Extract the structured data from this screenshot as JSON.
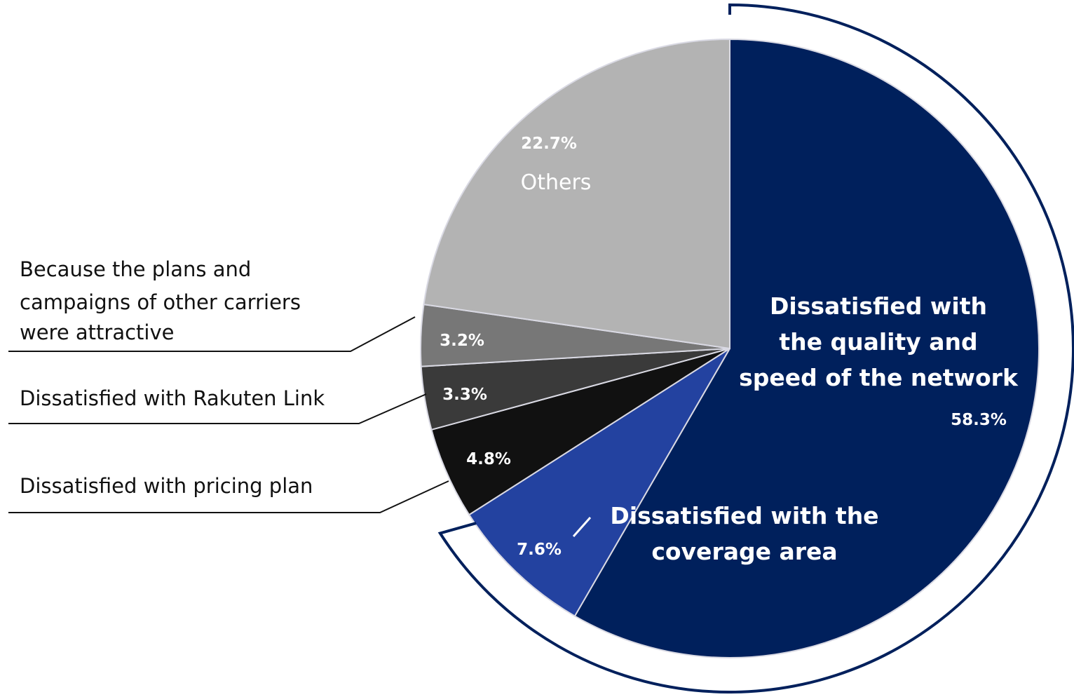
{
  "chart_data": {
    "type": "pie",
    "title": "",
    "start_angle_deg": 0,
    "direction": "clockwise",
    "slices": [
      {
        "name": "Dissatisfied with the quality and speed of the network",
        "name_lines": [
          "Dissatisfied with",
          "the quality and",
          "speed of the network"
        ],
        "value": 58.3,
        "label": "58.3%",
        "color": "#00205c"
      },
      {
        "name": "Dissatisfied with the coverage area",
        "name_lines": [
          "Dissatisfied with the",
          "coverage area"
        ],
        "value": 7.6,
        "label": "7.6%",
        "color": "#2342a0"
      },
      {
        "name": "Dissatisfied with pricing plan",
        "name_lines": [
          "Dissatisfied with pricing plan"
        ],
        "value": 4.8,
        "label": "4.8%",
        "color": "#111111"
      },
      {
        "name": "Dissatisfied with Rakuten Link",
        "name_lines": [
          "Dissatisfied with Rakuten Link"
        ],
        "value": 3.3,
        "label": "3.3%",
        "color": "#3a3a3a"
      },
      {
        "name": "Because the plans and campaigns of other carriers were attractive",
        "name_lines": [
          "Because the plans and",
          "campaigns of other carriers",
          "were attractive"
        ],
        "value": 3.2,
        "label": "3.2%",
        "color": "#777777"
      },
      {
        "name": "Others",
        "name_lines": [
          "Others"
        ],
        "value": 22.7,
        "label": "22.7%",
        "color": "#b3b3b3"
      }
    ],
    "highlight_bracket": {
      "covers": [
        "Dissatisfied with the quality and speed of the network",
        "Dissatisfied with the coverage area"
      ],
      "color": "#00205c"
    }
  }
}
